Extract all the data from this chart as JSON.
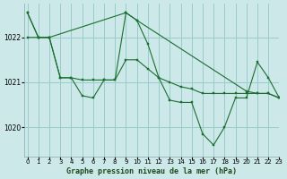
{
  "title": "Graphe pression niveau de la mer (hPa)",
  "bg_color": "#cce8e8",
  "grid_color": "#99cccc",
  "line_color": "#1a6e2e",
  "xlim": [
    -0.3,
    23
  ],
  "ylim": [
    1019.35,
    1022.75
  ],
  "yticks": [
    1020,
    1021,
    1022
  ],
  "xticks": [
    0,
    1,
    2,
    3,
    4,
    5,
    6,
    7,
    8,
    9,
    10,
    11,
    12,
    13,
    14,
    15,
    16,
    17,
    18,
    19,
    20,
    21,
    22,
    23
  ],
  "line1_x": [
    0,
    1,
    2,
    3,
    4,
    5,
    6,
    7,
    8,
    9,
    10,
    11,
    12,
    13,
    14,
    15,
    16,
    17,
    18,
    19,
    20,
    21,
    22,
    23
  ],
  "line1_y": [
    1022.55,
    1022.0,
    1022.0,
    1021.1,
    1021.1,
    1020.7,
    1020.65,
    1021.05,
    1021.05,
    1022.55,
    1022.38,
    1021.85,
    1021.1,
    1020.6,
    1020.55,
    1020.55,
    1019.85,
    1019.6,
    1020.0,
    1020.65,
    1020.65,
    1021.45,
    1021.1,
    1020.65
  ],
  "line2_x": [
    0,
    1,
    2,
    9,
    10,
    20,
    21,
    22,
    23
  ],
  "line2_y": [
    1022.55,
    1022.0,
    1022.0,
    1022.55,
    1022.38,
    1020.8,
    1020.75,
    1020.75,
    1020.65
  ],
  "line3_x": [
    0,
    1,
    2,
    3,
    4,
    5,
    6,
    7,
    8,
    9,
    10,
    11,
    12,
    13,
    14,
    15,
    16,
    17,
    18,
    19,
    20,
    21,
    22,
    23
  ],
  "line3_y": [
    1022.0,
    1022.0,
    1022.0,
    1021.1,
    1021.1,
    1021.05,
    1021.05,
    1021.05,
    1021.05,
    1021.5,
    1021.5,
    1021.3,
    1021.1,
    1021.0,
    1020.9,
    1020.85,
    1020.75,
    1020.75,
    1020.75,
    1020.75,
    1020.75,
    1020.75,
    1020.75,
    1020.65
  ]
}
